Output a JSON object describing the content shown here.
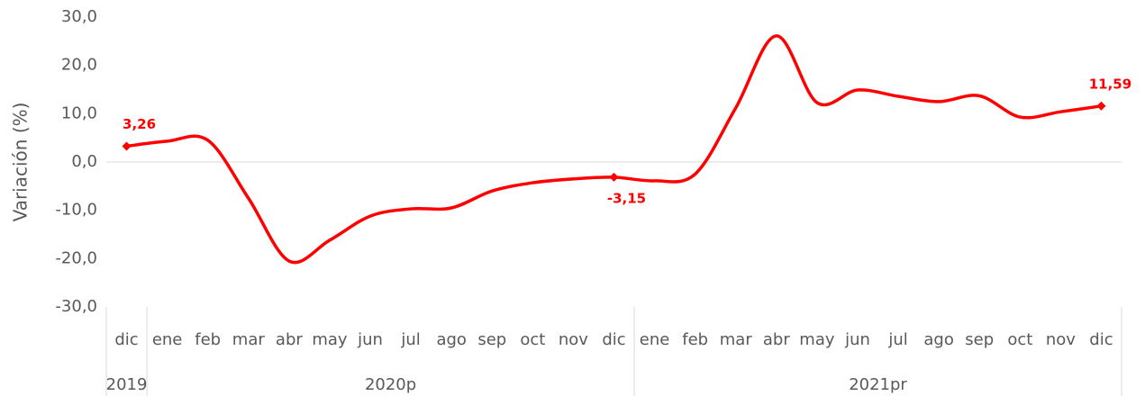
{
  "chart_data": {
    "type": "line",
    "y_label": "Variación (%)",
    "categories": [
      "dic",
      "ene",
      "feb",
      "mar",
      "abr",
      "may",
      "jun",
      "jul",
      "ago",
      "sep",
      "oct",
      "nov",
      "dic",
      "ene",
      "feb",
      "mar",
      "abr",
      "may",
      "jun",
      "jul",
      "ago",
      "sep",
      "oct",
      "nov",
      "dic"
    ],
    "x_groups": [
      {
        "label": "2019",
        "span": 1
      },
      {
        "label": "2020p",
        "span": 12
      },
      {
        "label": "2021pr",
        "span": 12
      }
    ],
    "series": [
      {
        "name": "Variación",
        "color": "#ff0000",
        "values": [
          3.26,
          4.3,
          4.5,
          -7.5,
          -20.5,
          -16.2,
          -11.2,
          -9.7,
          -9.5,
          -6.0,
          -4.3,
          -3.5,
          -3.15,
          -3.9,
          -2.5,
          11.2,
          26.1,
          12.3,
          14.9,
          13.6,
          12.5,
          13.7,
          9.3,
          10.4,
          11.59
        ],
        "value_labels": [
          "3,26",
          null,
          null,
          null,
          null,
          null,
          null,
          null,
          null,
          null,
          null,
          null,
          "-3,15",
          null,
          null,
          null,
          null,
          null,
          null,
          null,
          null,
          null,
          null,
          null,
          "11,59"
        ]
      }
    ],
    "ylim": [
      -30,
      30
    ],
    "yticks": [
      {
        "value": -30,
        "label": "-30,0"
      },
      {
        "value": -20,
        "label": "-20,0"
      },
      {
        "value": -10,
        "label": "-10,0"
      },
      {
        "value": 0,
        "label": "0,0"
      },
      {
        "value": 10,
        "label": "10,0"
      },
      {
        "value": 20,
        "label": "20,0"
      },
      {
        "value": 30,
        "label": "30,0"
      }
    ],
    "grid": false
  }
}
